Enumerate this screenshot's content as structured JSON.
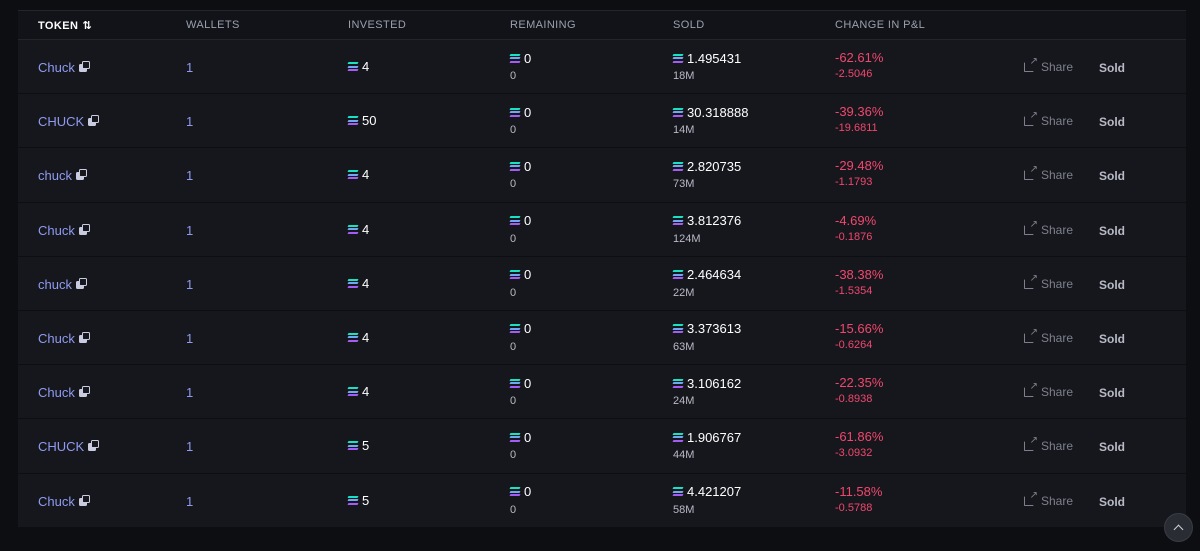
{
  "columns": {
    "token": "TOKEN",
    "wallets": "WALLETS",
    "invested": "INVESTED",
    "remaining": "REMAINING",
    "sold": "SOLD",
    "pnl": "CHANGE IN P&L"
  },
  "sort_glyph": "⇅",
  "share_label": "Share",
  "rows": [
    {
      "token": "Chuck",
      "wallets": "1",
      "invested": "4",
      "remaining": "0",
      "remaining_sub": "0",
      "sold": "1.495431",
      "sold_sub": "18M",
      "pnl_pct": "-62.61%",
      "pnl_val": "-2.5046",
      "status": "Sold"
    },
    {
      "token": "CHUCK",
      "wallets": "1",
      "invested": "50",
      "remaining": "0",
      "remaining_sub": "0",
      "sold": "30.318888",
      "sold_sub": "14M",
      "pnl_pct": "-39.36%",
      "pnl_val": "-19.6811",
      "status": "Sold"
    },
    {
      "token": "chuck",
      "wallets": "1",
      "invested": "4",
      "remaining": "0",
      "remaining_sub": "0",
      "sold": "2.820735",
      "sold_sub": "73M",
      "pnl_pct": "-29.48%",
      "pnl_val": "-1.1793",
      "status": "Sold"
    },
    {
      "token": "Chuck",
      "wallets": "1",
      "invested": "4",
      "remaining": "0",
      "remaining_sub": "0",
      "sold": "3.812376",
      "sold_sub": "124M",
      "pnl_pct": "-4.69%",
      "pnl_val": "-0.1876",
      "status": "Sold"
    },
    {
      "token": "chuck",
      "wallets": "1",
      "invested": "4",
      "remaining": "0",
      "remaining_sub": "0",
      "sold": "2.464634",
      "sold_sub": "22M",
      "pnl_pct": "-38.38%",
      "pnl_val": "-1.5354",
      "status": "Sold"
    },
    {
      "token": "Chuck",
      "wallets": "1",
      "invested": "4",
      "remaining": "0",
      "remaining_sub": "0",
      "sold": "3.373613",
      "sold_sub": "63M",
      "pnl_pct": "-15.66%",
      "pnl_val": "-0.6264",
      "status": "Sold"
    },
    {
      "token": "Chuck",
      "wallets": "1",
      "invested": "4",
      "remaining": "0",
      "remaining_sub": "0",
      "sold": "3.106162",
      "sold_sub": "24M",
      "pnl_pct": "-22.35%",
      "pnl_val": "-0.8938",
      "status": "Sold"
    },
    {
      "token": "CHUCK",
      "wallets": "1",
      "invested": "5",
      "remaining": "0",
      "remaining_sub": "0",
      "sold": "1.906767",
      "sold_sub": "44M",
      "pnl_pct": "-61.86%",
      "pnl_val": "-3.0932",
      "status": "Sold"
    },
    {
      "token": "Chuck",
      "wallets": "1",
      "invested": "5",
      "remaining": "0",
      "remaining_sub": "0",
      "sold": "4.421207",
      "sold_sub": "58M",
      "pnl_pct": "-11.58%",
      "pnl_val": "-0.5788",
      "status": "Sold"
    }
  ],
  "colors": {
    "background": "#0d0e12",
    "row_background": "#16171d",
    "link": "#8f9bf0",
    "negative": "#f0476d",
    "sol_gradient": [
      "#19e1c2",
      "#6fa8f0",
      "#a55cf5"
    ]
  },
  "icons": {
    "currency": "solana-icon",
    "copy": "copy-icon",
    "share": "share-icon",
    "sort": "sort-icon",
    "scroll_top": "chevron-up-icon"
  }
}
